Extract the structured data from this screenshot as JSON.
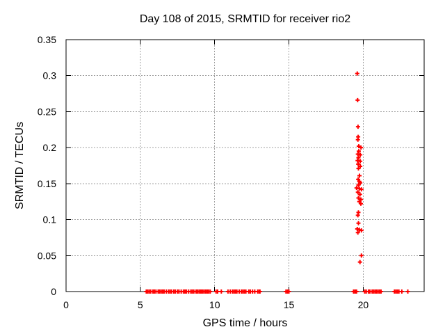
{
  "chart_data": {
    "type": "scatter",
    "title": "Day 108 of 2015, SRMTID for receiver rio2",
    "xlabel": "GPS time / hours",
    "ylabel": "SRMTID / TECUs",
    "xlim": [
      0,
      24.1
    ],
    "ylim": [
      0,
      0.35
    ],
    "xticks": [
      {
        "v": 0,
        "label": "0"
      },
      {
        "v": 5,
        "label": "5"
      },
      {
        "v": 10,
        "label": "10"
      },
      {
        "v": 15,
        "label": "15"
      },
      {
        "v": 20,
        "label": "20"
      }
    ],
    "yticks": [
      {
        "v": 0,
        "label": "0"
      },
      {
        "v": 0.05,
        "label": "0.05"
      },
      {
        "v": 0.1,
        "label": "0.1"
      },
      {
        "v": 0.15,
        "label": "0.15"
      },
      {
        "v": 0.2,
        "label": "0.2"
      },
      {
        "v": 0.25,
        "label": "0.25"
      },
      {
        "v": 0.3,
        "label": "0.3"
      },
      {
        "v": 0.35,
        "label": "0.35"
      }
    ],
    "grid": true,
    "legend": "none",
    "marker": {
      "shape": "plus",
      "color": "#ff0000",
      "size": 7
    },
    "colors": {
      "grid": "#a0a0a0",
      "axis": "#000000",
      "text": "#000000",
      "background": "#ffffff"
    },
    "series": [
      {
        "name": "",
        "points": [
          [
            19.6,
            0.303
          ],
          [
            19.62,
            0.266
          ],
          [
            19.65,
            0.229
          ],
          [
            19.66,
            0.215
          ],
          [
            19.64,
            0.211
          ],
          [
            19.7,
            0.202
          ],
          [
            19.85,
            0.2
          ],
          [
            19.7,
            0.195
          ],
          [
            19.64,
            0.191
          ],
          [
            19.8,
            0.19
          ],
          [
            19.68,
            0.186
          ],
          [
            19.62,
            0.182
          ],
          [
            19.8,
            0.181
          ],
          [
            19.66,
            0.177
          ],
          [
            19.8,
            0.174
          ],
          [
            19.68,
            0.171
          ],
          [
            19.75,
            0.161
          ],
          [
            19.66,
            0.156
          ],
          [
            19.74,
            0.153
          ],
          [
            19.8,
            0.151
          ],
          [
            19.68,
            0.148
          ],
          [
            19.55,
            0.144
          ],
          [
            19.74,
            0.143
          ],
          [
            19.88,
            0.142
          ],
          [
            19.64,
            0.138
          ],
          [
            19.78,
            0.135
          ],
          [
            19.68,
            0.13
          ],
          [
            19.84,
            0.128
          ],
          [
            19.74,
            0.125
          ],
          [
            19.84,
            0.122
          ],
          [
            19.68,
            0.11
          ],
          [
            19.64,
            0.106
          ],
          [
            19.68,
            0.095
          ],
          [
            19.6,
            0.087
          ],
          [
            19.74,
            0.086
          ],
          [
            19.88,
            0.085
          ],
          [
            19.64,
            0.082
          ],
          [
            19.88,
            0.05
          ],
          [
            19.78,
            0.041
          ],
          [
            5.4,
            0
          ],
          [
            5.5,
            0
          ],
          [
            5.6,
            0
          ],
          [
            5.7,
            0
          ],
          [
            5.85,
            0
          ],
          [
            5.95,
            0
          ],
          [
            6.05,
            0
          ],
          [
            6.2,
            0
          ],
          [
            6.3,
            0
          ],
          [
            6.4,
            0
          ],
          [
            6.5,
            0
          ],
          [
            6.6,
            0
          ],
          [
            6.75,
            0
          ],
          [
            6.9,
            0
          ],
          [
            7.0,
            0
          ],
          [
            7.1,
            0
          ],
          [
            7.25,
            0
          ],
          [
            7.35,
            0
          ],
          [
            7.5,
            0
          ],
          [
            7.6,
            0
          ],
          [
            7.75,
            0
          ],
          [
            7.9,
            0
          ],
          [
            8.0,
            0
          ],
          [
            8.1,
            0
          ],
          [
            8.25,
            0
          ],
          [
            8.4,
            0
          ],
          [
            8.5,
            0
          ],
          [
            8.6,
            0
          ],
          [
            8.75,
            0
          ],
          [
            8.85,
            0
          ],
          [
            8.95,
            0
          ],
          [
            9.05,
            0
          ],
          [
            9.1,
            0
          ],
          [
            9.2,
            0
          ],
          [
            9.3,
            0
          ],
          [
            9.4,
            0
          ],
          [
            9.5,
            0
          ],
          [
            9.6,
            0
          ],
          [
            9.7,
            0
          ],
          [
            10.1,
            0
          ],
          [
            10.2,
            0
          ],
          [
            10.45,
            0
          ],
          [
            10.9,
            0
          ],
          [
            11.05,
            0
          ],
          [
            11.2,
            0
          ],
          [
            11.3,
            0
          ],
          [
            11.4,
            0
          ],
          [
            11.5,
            0
          ],
          [
            11.65,
            0
          ],
          [
            11.8,
            0
          ],
          [
            11.9,
            0
          ],
          [
            12.0,
            0
          ],
          [
            12.1,
            0
          ],
          [
            12.3,
            0
          ],
          [
            12.4,
            0
          ],
          [
            12.55,
            0
          ],
          [
            12.7,
            0
          ],
          [
            12.9,
            0
          ],
          [
            13.0,
            0
          ],
          [
            13.05,
            0
          ],
          [
            14.8,
            0
          ],
          [
            14.9,
            0
          ],
          [
            15.0,
            0
          ],
          [
            19.35,
            0
          ],
          [
            19.45,
            0
          ],
          [
            19.5,
            0
          ],
          [
            19.55,
            0
          ],
          [
            20.1,
            0
          ],
          [
            20.2,
            0
          ],
          [
            20.35,
            0
          ],
          [
            20.45,
            0
          ],
          [
            20.6,
            0
          ],
          [
            20.7,
            0
          ],
          [
            20.8,
            0
          ],
          [
            20.9,
            0
          ],
          [
            21.0,
            0
          ],
          [
            21.1,
            0
          ],
          [
            21.2,
            0
          ],
          [
            22.1,
            0
          ],
          [
            22.2,
            0
          ],
          [
            22.3,
            0
          ],
          [
            22.4,
            0
          ],
          [
            22.6,
            0
          ],
          [
            23.0,
            0
          ]
        ]
      }
    ]
  }
}
